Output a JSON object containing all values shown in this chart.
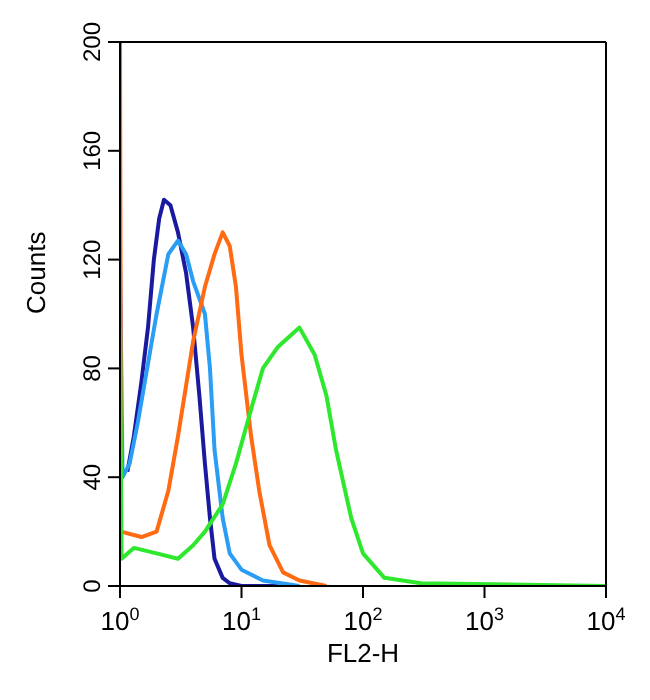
{
  "chart_data": {
    "type": "line",
    "xlabel": "FL2-H",
    "ylabel": "Counts",
    "log": "x",
    "xlim": [
      1,
      10000
    ],
    "xticks": [
      {
        "value": 1,
        "label": "10$^{0}$"
      },
      {
        "value": 10,
        "label": "10$^{1}$"
      },
      {
        "value": 100,
        "label": "10$^{2}$"
      },
      {
        "value": 1000,
        "label": "10$^{3}$"
      },
      {
        "value": 10000,
        "label": "10$^{4}$"
      }
    ],
    "ylim": [
      0,
      200
    ],
    "yticks": [
      0,
      40,
      80,
      120,
      160,
      200
    ],
    "marker": "none",
    "line_style": "solid",
    "series": [
      {
        "color": "#1a1aa0",
        "x": [
          1.15,
          1.3,
          1.5,
          1.7,
          1.9,
          2.1,
          2.3,
          2.6,
          3,
          3.5,
          4,
          4.5,
          5,
          5.5,
          6,
          7,
          8,
          10,
          20
        ],
        "values": [
          42,
          55,
          75,
          95,
          120,
          135,
          142,
          140,
          130,
          115,
          95,
          70,
          45,
          25,
          10,
          3,
          1,
          0,
          0
        ]
      },
      {
        "color": "#2a9df4",
        "x": [
          1,
          1.05,
          1.2,
          1.4,
          1.6,
          2,
          2.5,
          3,
          3.5,
          4,
          5,
          5.5,
          6,
          7,
          8,
          10,
          15,
          30
        ],
        "values": [
          120,
          40,
          45,
          60,
          75,
          100,
          122,
          127,
          122,
          112,
          100,
          80,
          50,
          25,
          12,
          6,
          2,
          0
        ]
      },
      {
        "color": "#ff6a13",
        "x": [
          1,
          1.02,
          1.5,
          2,
          2.5,
          3,
          4,
          5,
          6,
          7,
          8,
          9,
          10,
          12,
          14,
          17,
          22,
          30,
          50
        ],
        "values": [
          200,
          20,
          18,
          20,
          35,
          55,
          90,
          110,
          122,
          130,
          125,
          110,
          85,
          55,
          35,
          15,
          5,
          2,
          0
        ]
      },
      {
        "color": "#2ee82e",
        "x": [
          1,
          1.03,
          1.3,
          2,
          3,
          4,
          5,
          7,
          9,
          12,
          15,
          20,
          30,
          40,
          50,
          60,
          80,
          100,
          150,
          300,
          10000
        ],
        "values": [
          95,
          10,
          14,
          12,
          10,
          15,
          20,
          30,
          45,
          65,
          80,
          88,
          95,
          85,
          70,
          50,
          25,
          12,
          3,
          1,
          0
        ]
      }
    ]
  }
}
